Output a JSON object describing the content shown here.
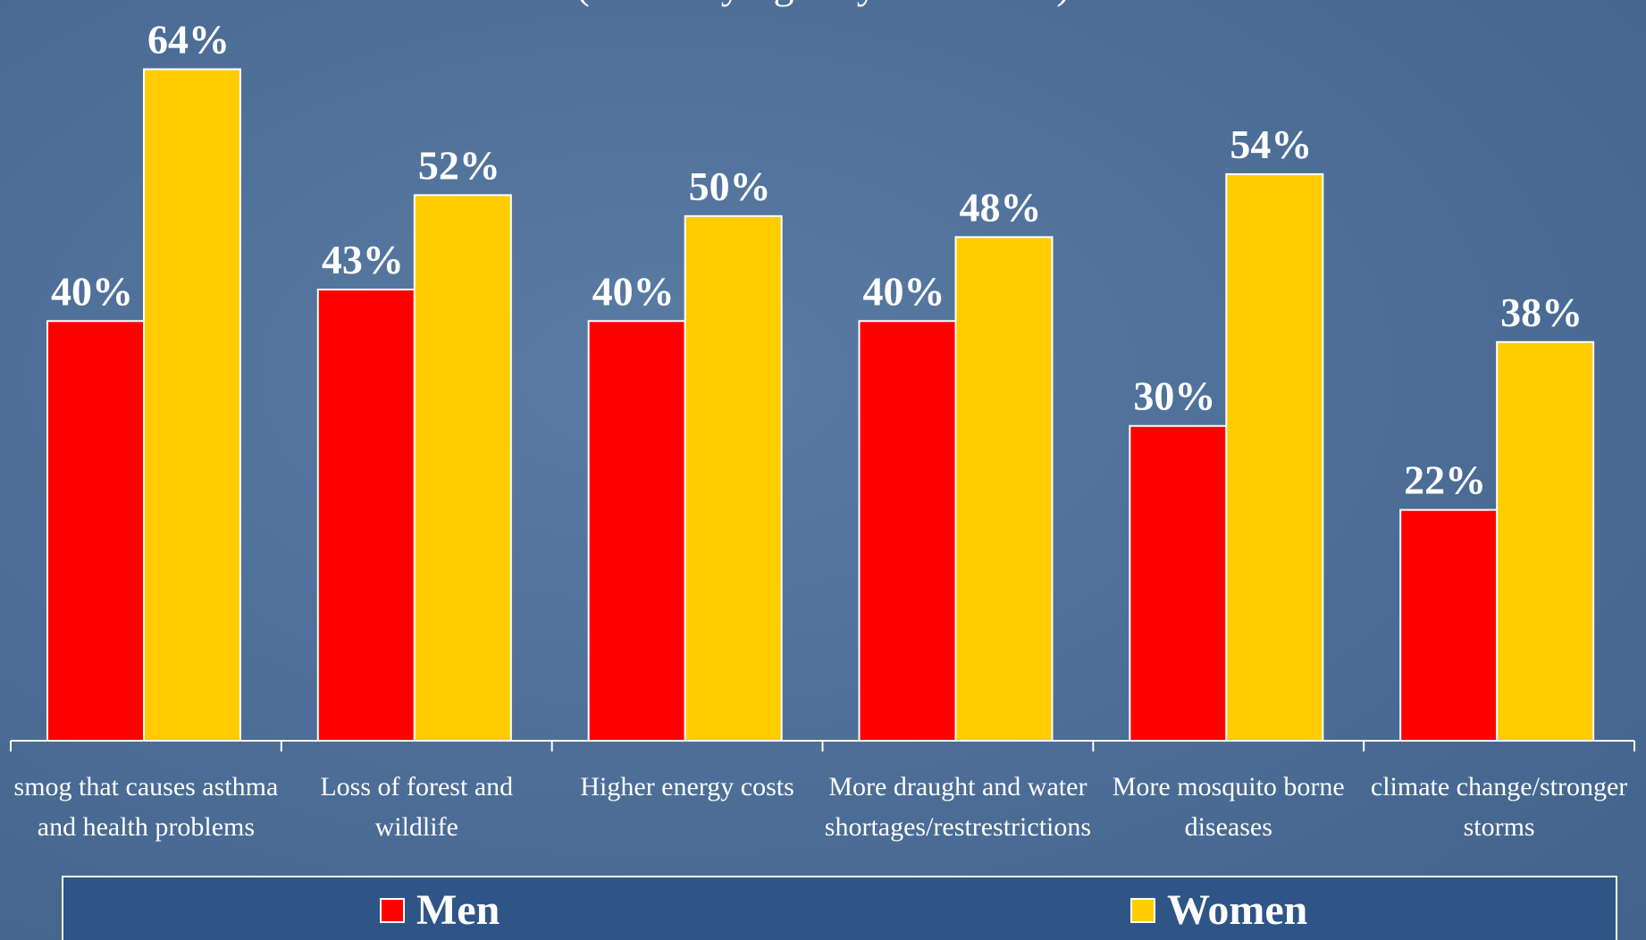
{
  "chart_data": {
    "type": "bar",
    "subtitle": "(those saying very concerned)",
    "categories": [
      "smog that causes asthma and health problems",
      "Loss of forest and wildlife",
      "Higher energy costs",
      "More draught and water shortages/restrestrictions",
      "More mosquito borne diseases",
      "climate change/stronger storms"
    ],
    "series": [
      {
        "name": "Men",
        "color": "#ff0000",
        "values": [
          40,
          43,
          40,
          40,
          30,
          22
        ],
        "value_labels": [
          "40%",
          "43%",
          "40%",
          "40%",
          "30%",
          "22%"
        ]
      },
      {
        "name": "Women",
        "color": "#ffcc00",
        "values": [
          64,
          52,
          50,
          48,
          54,
          38
        ],
        "value_labels": [
          "64%",
          "52%",
          "50%",
          "48%",
          "54%",
          "38%"
        ]
      }
    ],
    "ylim": [
      0,
      70
    ],
    "legend": "bottom"
  }
}
